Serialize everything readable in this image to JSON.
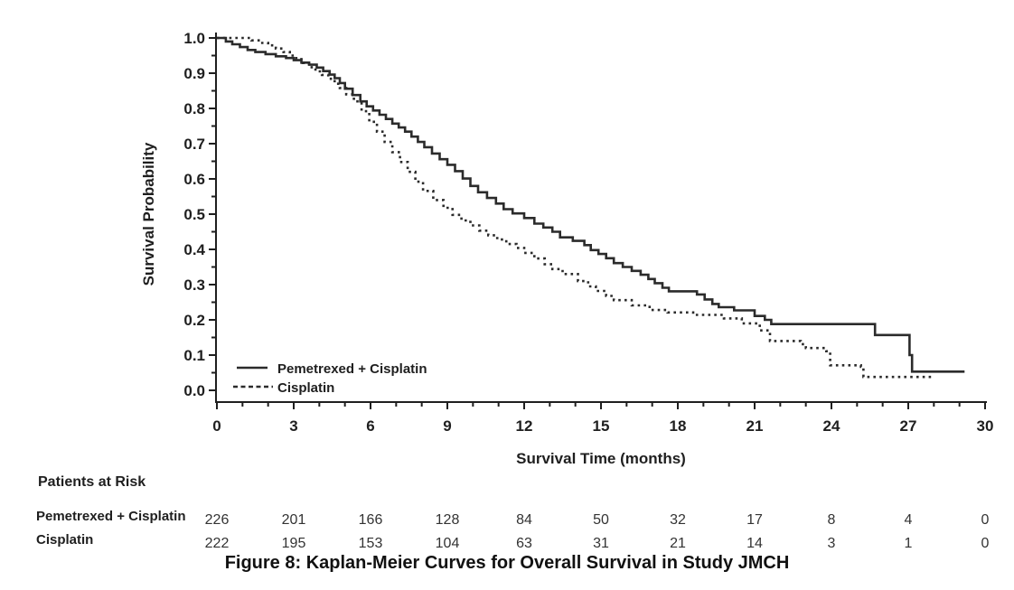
{
  "figure": {
    "caption": "Figure 8: Kaplan-Meier Curves for Overall Survival in Study JMCH"
  },
  "colors": {
    "ink": "#1f1f1f",
    "line": "#2b2b2b",
    "background": "#ffffff"
  },
  "chart_data": {
    "type": "line",
    "subtype": "kaplan-meier-step",
    "title": "",
    "xlabel": "Survival Time (months)",
    "ylabel": "Survival Probability",
    "xlim": [
      0,
      30
    ],
    "ylim": [
      0.0,
      1.0
    ],
    "grid": false,
    "x_major_ticks": [
      0,
      3,
      6,
      9,
      12,
      15,
      18,
      21,
      24,
      27,
      30
    ],
    "x_minor_tick_interval": 1,
    "y_major_tick_interval": 0.1,
    "y_minor_tick_interval": 0.05,
    "legend": {
      "position": "inside-bottom-left",
      "entries": [
        {
          "label": "Pemetrexed + Cisplatin",
          "style": "solid"
        },
        {
          "label": "Cisplatin",
          "style": "dotted"
        }
      ]
    },
    "series": [
      {
        "name": "Pemetrexed + Cisplatin",
        "line": "solid",
        "points": [
          [
            0,
            1.0
          ],
          [
            0.35,
            0.99
          ],
          [
            0.6,
            0.982
          ],
          [
            0.9,
            0.974
          ],
          [
            1.2,
            0.966
          ],
          [
            1.5,
            0.96
          ],
          [
            1.9,
            0.954
          ],
          [
            2.3,
            0.948
          ],
          [
            2.7,
            0.943
          ],
          [
            3.0,
            0.937
          ],
          [
            3.3,
            0.93
          ],
          [
            3.6,
            0.924
          ],
          [
            3.9,
            0.916
          ],
          [
            4.15,
            0.906
          ],
          [
            4.4,
            0.896
          ],
          [
            4.6,
            0.886
          ],
          [
            4.8,
            0.872
          ],
          [
            5.0,
            0.856
          ],
          [
            5.3,
            0.838
          ],
          [
            5.6,
            0.82
          ],
          [
            5.85,
            0.806
          ],
          [
            6.1,
            0.794
          ],
          [
            6.35,
            0.782
          ],
          [
            6.6,
            0.77
          ],
          [
            6.85,
            0.757
          ],
          [
            7.1,
            0.746
          ],
          [
            7.35,
            0.734
          ],
          [
            7.6,
            0.72
          ],
          [
            7.85,
            0.705
          ],
          [
            8.1,
            0.69
          ],
          [
            8.4,
            0.672
          ],
          [
            8.7,
            0.656
          ],
          [
            9.0,
            0.64
          ],
          [
            9.3,
            0.622
          ],
          [
            9.6,
            0.601
          ],
          [
            9.9,
            0.58
          ],
          [
            10.2,
            0.562
          ],
          [
            10.55,
            0.546
          ],
          [
            10.9,
            0.53
          ],
          [
            11.2,
            0.514
          ],
          [
            11.55,
            0.502
          ],
          [
            12.0,
            0.489
          ],
          [
            12.4,
            0.473
          ],
          [
            12.75,
            0.462
          ],
          [
            13.1,
            0.45
          ],
          [
            13.4,
            0.434
          ],
          [
            13.9,
            0.424
          ],
          [
            14.35,
            0.412
          ],
          [
            14.6,
            0.398
          ],
          [
            14.9,
            0.387
          ],
          [
            15.2,
            0.375
          ],
          [
            15.5,
            0.361
          ],
          [
            15.85,
            0.35
          ],
          [
            16.2,
            0.339
          ],
          [
            16.55,
            0.328
          ],
          [
            16.85,
            0.316
          ],
          [
            17.1,
            0.304
          ],
          [
            17.4,
            0.291
          ],
          [
            17.65,
            0.281
          ],
          [
            18.75,
            0.272
          ],
          [
            19.05,
            0.258
          ],
          [
            19.35,
            0.245
          ],
          [
            19.6,
            0.236
          ],
          [
            20.2,
            0.227
          ],
          [
            21.0,
            0.211
          ],
          [
            21.4,
            0.2
          ],
          [
            21.65,
            0.188
          ],
          [
            25.7,
            0.157
          ],
          [
            27.05,
            0.1
          ],
          [
            27.15,
            0.053
          ],
          [
            29.2,
            0.053
          ]
        ]
      },
      {
        "name": "Cisplatin",
        "line": "dotted",
        "points": [
          [
            0,
            1.0
          ],
          [
            1.35,
            0.993
          ],
          [
            1.7,
            0.986
          ],
          [
            2.0,
            0.979
          ],
          [
            2.3,
            0.97
          ],
          [
            2.6,
            0.96
          ],
          [
            2.85,
            0.95
          ],
          [
            3.1,
            0.94
          ],
          [
            3.35,
            0.929
          ],
          [
            3.6,
            0.917
          ],
          [
            3.85,
            0.905
          ],
          [
            4.1,
            0.895
          ],
          [
            4.35,
            0.884
          ],
          [
            4.6,
            0.87
          ],
          [
            4.8,
            0.858
          ],
          [
            5.05,
            0.84
          ],
          [
            5.35,
            0.82
          ],
          [
            5.65,
            0.792
          ],
          [
            5.95,
            0.762
          ],
          [
            6.25,
            0.734
          ],
          [
            6.55,
            0.705
          ],
          [
            6.85,
            0.676
          ],
          [
            7.15,
            0.648
          ],
          [
            7.45,
            0.62
          ],
          [
            7.75,
            0.592
          ],
          [
            8.05,
            0.566
          ],
          [
            8.45,
            0.54
          ],
          [
            8.85,
            0.518
          ],
          [
            9.2,
            0.498
          ],
          [
            9.55,
            0.482
          ],
          [
            9.9,
            0.468
          ],
          [
            10.25,
            0.453
          ],
          [
            10.6,
            0.44
          ],
          [
            10.95,
            0.428
          ],
          [
            11.3,
            0.415
          ],
          [
            11.7,
            0.404
          ],
          [
            12.0,
            0.39
          ],
          [
            12.4,
            0.374
          ],
          [
            12.8,
            0.358
          ],
          [
            13.1,
            0.344
          ],
          [
            13.5,
            0.33
          ],
          [
            14.1,
            0.31
          ],
          [
            14.5,
            0.295
          ],
          [
            14.8,
            0.282
          ],
          [
            15.2,
            0.268
          ],
          [
            15.5,
            0.256
          ],
          [
            16.2,
            0.241
          ],
          [
            16.9,
            0.228
          ],
          [
            17.6,
            0.221
          ],
          [
            18.6,
            0.214
          ],
          [
            19.8,
            0.204
          ],
          [
            20.5,
            0.19
          ],
          [
            21.2,
            0.17
          ],
          [
            21.6,
            0.14
          ],
          [
            22.8,
            0.131
          ],
          [
            23.0,
            0.12
          ],
          [
            23.8,
            0.111
          ],
          [
            23.95,
            0.071
          ],
          [
            25.15,
            0.067
          ],
          [
            25.25,
            0.038
          ],
          [
            27.9,
            0.038
          ]
        ]
      }
    ]
  },
  "risk_table": {
    "title": "Patients at Risk",
    "time_points": [
      0,
      3,
      6,
      9,
      12,
      15,
      18,
      21,
      24,
      27,
      30
    ],
    "rows": [
      {
        "label": "Pemetrexed + Cisplatin",
        "counts": [
          226,
          201,
          166,
          128,
          84,
          50,
          32,
          17,
          8,
          4,
          0
        ]
      },
      {
        "label": "Cisplatin",
        "counts": [
          222,
          195,
          153,
          104,
          63,
          31,
          21,
          14,
          3,
          1,
          0
        ]
      }
    ]
  }
}
